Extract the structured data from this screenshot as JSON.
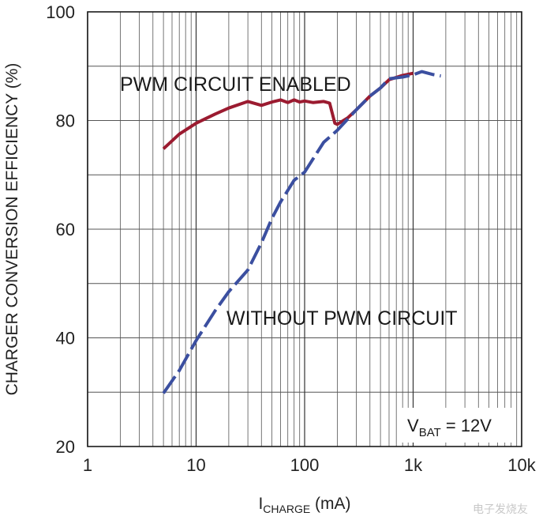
{
  "chart_data": {
    "type": "line",
    "xscale": "log",
    "xlabel_main": "I",
    "xlabel_sub": "CHARGE",
    "xlabel_unit": " (mA)",
    "ylabel": "CHARGER CONVERSION EFFICIENCY (%)",
    "xlim": [
      1,
      10000
    ],
    "ylim": [
      20,
      100
    ],
    "xticks": [
      {
        "value": 1,
        "label": "1"
      },
      {
        "value": 10,
        "label": "10"
      },
      {
        "value": 100,
        "label": "100"
      },
      {
        "value": 1000,
        "label": "1k"
      },
      {
        "value": 10000,
        "label": "10k"
      }
    ],
    "yticks": [
      {
        "value": 20,
        "label": "20"
      },
      {
        "value": 40,
        "label": "40"
      },
      {
        "value": 60,
        "label": "60"
      },
      {
        "value": 80,
        "label": "80"
      },
      {
        "value": 100,
        "label": "100"
      }
    ],
    "grid": true,
    "series": [
      {
        "name": "PWM CIRCUIT ENABLED",
        "color": "#9b1b30",
        "dashed": false,
        "x": [
          5,
          7,
          10,
          15,
          20,
          30,
          40,
          50,
          60,
          70,
          80,
          90,
          100,
          120,
          150,
          170,
          190,
          200,
          250,
          300,
          400,
          500,
          600,
          800,
          1000
        ],
        "y": [
          74.8,
          77.5,
          79.5,
          81.2,
          82.3,
          83.5,
          82.8,
          83.4,
          83.8,
          83.3,
          83.8,
          83.4,
          83.6,
          83.3,
          83.5,
          83.2,
          79.5,
          79.3,
          80.5,
          82.0,
          84.5,
          86.0,
          87.5,
          88.3,
          88.7
        ]
      },
      {
        "name": "WITHOUT PWM CIRCUIT",
        "color": "#3b4fa0",
        "dashed": true,
        "x": [
          5,
          7,
          10,
          15,
          20,
          30,
          40,
          50,
          60,
          80,
          100,
          150,
          200,
          300,
          400,
          500,
          600,
          800,
          1000,
          1200,
          1500,
          1800
        ],
        "y": [
          29.8,
          34,
          39.5,
          45,
          48.5,
          52.5,
          57.5,
          62,
          65,
          69,
          70.5,
          76,
          78.2,
          82,
          84.5,
          86,
          87.7,
          88.0,
          88.4,
          89.0,
          88.5,
          88.2
        ]
      }
    ],
    "annotations": [
      {
        "text": "PWM CIRCUIT ENABLED",
        "for": "PWM CIRCUIT ENABLED"
      },
      {
        "text": "WITHOUT PWM CIRCUIT",
        "for": "WITHOUT PWM CIRCUIT"
      }
    ],
    "condition": {
      "main": "V",
      "sub": "BAT",
      "rest": " = 12V"
    }
  },
  "watermark": "电子发烧友"
}
